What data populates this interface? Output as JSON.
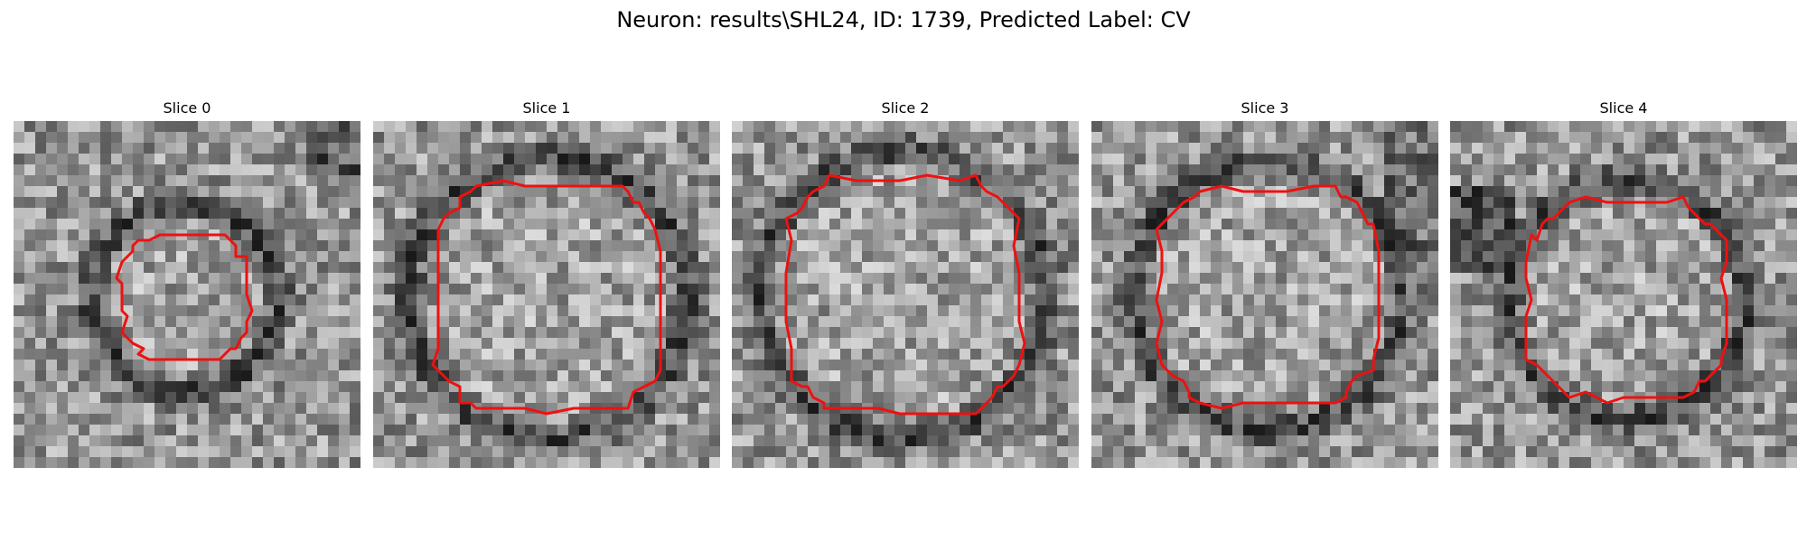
{
  "figure": {
    "title": "Neuron: results\\SHL24, ID: 1739, Predicted Label: CV"
  },
  "panels": [
    {
      "title": "Slice 0"
    },
    {
      "title": "Slice 1"
    },
    {
      "title": "Slice 2"
    },
    {
      "title": "Slice 3"
    },
    {
      "title": "Slice 4"
    }
  ],
  "colors": {
    "contour": "#ee1111",
    "background": "#ffffff"
  }
}
